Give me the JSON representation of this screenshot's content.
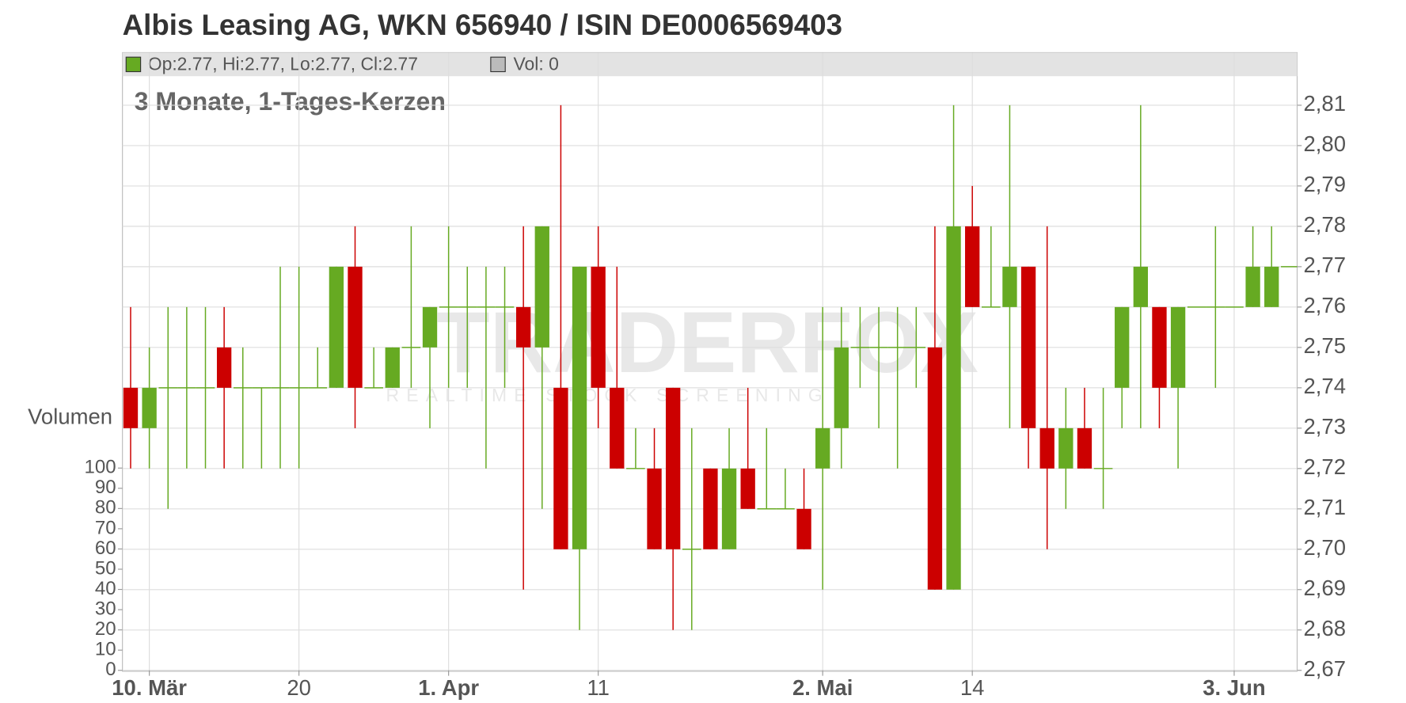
{
  "chart_data": {
    "type": "candlestick",
    "title": "Albis Leasing AG, WKN 656940 / ISIN DE0006569403",
    "subtitle": "3 Monate, 1-Tages-Kerzen",
    "header_ohlc": "Op:2.77, Hi:2.77, Lo:2.77, Cl:2.77",
    "header_volume": "Vol: 0",
    "watermark": "TRADERFOX",
    "watermark_sub": "REALTIME STOCK SCREENING",
    "y2_label": "Volumen",
    "up_color": "#66aa22",
    "down_color": "#cc0000",
    "grid": true,
    "categories": [
      null,
      "10. Mär",
      null,
      null,
      null,
      null,
      null,
      null,
      null,
      "20",
      null,
      null,
      null,
      null,
      null,
      null,
      null,
      "1. Apr",
      null,
      null,
      null,
      null,
      null,
      null,
      null,
      "11",
      null,
      null,
      null,
      null,
      null,
      null,
      null,
      null,
      null,
      null,
      null,
      "2. Mai",
      null,
      null,
      null,
      null,
      null,
      null,
      null,
      "14",
      null,
      null,
      null,
      null,
      null,
      null,
      null,
      null,
      null,
      null,
      null,
      null,
      null,
      "3. Jun",
      null,
      null,
      null
    ],
    "open": [
      2.74,
      2.73,
      2.74,
      2.74,
      2.74,
      2.75,
      2.74,
      2.74,
      2.74,
      2.74,
      2.74,
      2.74,
      2.77,
      2.74,
      2.74,
      2.75,
      2.75,
      2.76,
      2.76,
      2.76,
      2.76,
      2.76,
      2.75,
      2.74,
      2.7,
      2.77,
      2.74,
      2.72,
      2.72,
      2.74,
      2.7,
      2.72,
      2.7,
      2.72,
      2.71,
      2.71,
      2.71,
      2.72,
      2.73,
      2.75,
      2.75,
      2.75,
      2.75,
      2.75,
      2.69,
      2.78,
      2.76,
      2.76,
      2.77,
      2.73,
      2.72,
      2.73,
      2.72,
      2.74,
      2.76,
      2.76,
      2.74,
      2.76,
      2.76,
      2.76,
      2.76,
      2.76,
      2.77
    ],
    "high": [
      2.76,
      2.75,
      2.76,
      2.76,
      2.76,
      2.76,
      2.75,
      2.74,
      2.77,
      2.77,
      2.75,
      2.77,
      2.78,
      2.75,
      2.75,
      2.78,
      2.76,
      2.78,
      2.77,
      2.77,
      2.77,
      2.78,
      2.78,
      2.81,
      2.77,
      2.78,
      2.77,
      2.73,
      2.73,
      2.74,
      2.73,
      2.72,
      2.73,
      2.74,
      2.73,
      2.72,
      2.72,
      2.76,
      2.76,
      2.76,
      2.76,
      2.76,
      2.76,
      2.78,
      2.81,
      2.79,
      2.78,
      2.81,
      2.77,
      2.78,
      2.74,
      2.74,
      2.74,
      2.76,
      2.81,
      2.76,
      2.76,
      2.76,
      2.78,
      2.76,
      2.78,
      2.78,
      2.77
    ],
    "low": [
      2.72,
      2.72,
      2.71,
      2.72,
      2.72,
      2.72,
      2.72,
      2.72,
      2.72,
      2.72,
      2.74,
      2.74,
      2.73,
      2.74,
      2.74,
      2.74,
      2.73,
      2.74,
      2.74,
      2.72,
      2.74,
      2.69,
      2.71,
      2.7,
      2.68,
      2.73,
      2.72,
      2.72,
      2.7,
      2.68,
      2.68,
      2.7,
      2.7,
      2.71,
      2.71,
      2.71,
      2.7,
      2.69,
      2.72,
      2.74,
      2.73,
      2.72,
      2.74,
      2.69,
      2.69,
      2.76,
      2.76,
      2.73,
      2.72,
      2.7,
      2.71,
      2.72,
      2.71,
      2.73,
      2.73,
      2.73,
      2.72,
      2.76,
      2.74,
      2.76,
      2.76,
      2.76,
      2.77
    ],
    "close": [
      2.73,
      2.74,
      2.74,
      2.74,
      2.74,
      2.74,
      2.74,
      2.74,
      2.74,
      2.74,
      2.74,
      2.77,
      2.74,
      2.74,
      2.75,
      2.75,
      2.76,
      2.76,
      2.76,
      2.76,
      2.76,
      2.75,
      2.78,
      2.7,
      2.77,
      2.74,
      2.72,
      2.72,
      2.7,
      2.7,
      2.7,
      2.7,
      2.72,
      2.71,
      2.71,
      2.71,
      2.7,
      2.73,
      2.75,
      2.75,
      2.75,
      2.75,
      2.75,
      2.69,
      2.78,
      2.76,
      2.76,
      2.77,
      2.73,
      2.72,
      2.73,
      2.72,
      2.72,
      2.76,
      2.77,
      2.74,
      2.76,
      2.76,
      2.76,
      2.76,
      2.77,
      2.77,
      2.77
    ],
    "ylim": [
      2.67,
      2.81
    ],
    "yticks": [
      {
        "value": 2.67,
        "label": "2,67"
      },
      {
        "value": 2.68,
        "label": "2,68"
      },
      {
        "value": 2.69,
        "label": "2,69"
      },
      {
        "value": 2.7,
        "label": "2,70"
      },
      {
        "value": 2.71,
        "label": "2,71"
      },
      {
        "value": 2.72,
        "label": "2,72"
      },
      {
        "value": 2.73,
        "label": "2,73"
      },
      {
        "value": 2.74,
        "label": "2,74"
      },
      {
        "value": 2.75,
        "label": "2,75"
      },
      {
        "value": 2.76,
        "label": "2,76"
      },
      {
        "value": 2.77,
        "label": "2,77"
      },
      {
        "value": 2.78,
        "label": "2,78"
      },
      {
        "value": 2.79,
        "label": "2,79"
      },
      {
        "value": 2.8,
        "label": "2,80"
      },
      {
        "value": 2.81,
        "label": "2,81"
      }
    ],
    "y2lim": [
      0,
      100
    ],
    "y2ticks": [
      0,
      10,
      20,
      30,
      40,
      50,
      60,
      70,
      80,
      90,
      100
    ]
  }
}
